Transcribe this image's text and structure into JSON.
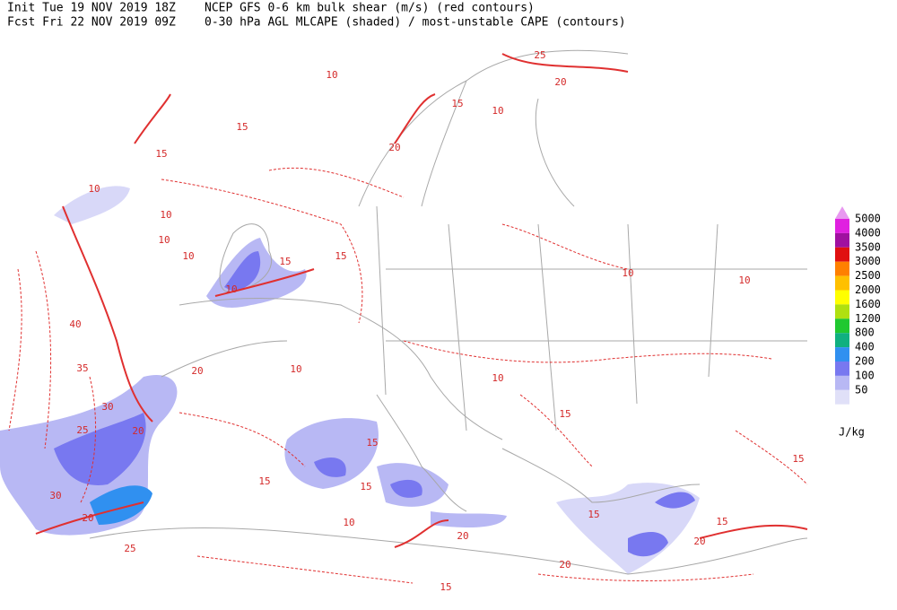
{
  "header": {
    "init": "Init  Tue 19 NOV 2019 18Z",
    "model": "NCEP GFS 0-6 km bulk shear (m/s) (red contours)",
    "fcst": "Fcst Fri 22 NOV 2019 09Z",
    "subtitle": "0-30 hPa AGL MLCAPE (shaded) / most-unstable CAPE (contours)"
  },
  "colorbar": {
    "levels": [
      5000,
      4000,
      3500,
      3000,
      2500,
      2000,
      1600,
      1200,
      800,
      400,
      200,
      100,
      50
    ],
    "colors": [
      "#e020e0",
      "#a010a0",
      "#e01010",
      "#ff8000",
      "#ffc000",
      "#ffff00",
      "#b0e010",
      "#20c830",
      "#10b080",
      "#3090f0",
      "#7878f0",
      "#b8b8f4",
      "#e0e0f8"
    ],
    "extend_color": "#e898f0",
    "unit": "J/kg"
  },
  "contour_labels": [
    "10",
    "15",
    "25",
    "20",
    "15",
    "10",
    "20",
    "10",
    "15",
    "10",
    "10",
    "15",
    "10",
    "10",
    "40",
    "35",
    "30",
    "25",
    "20",
    "30",
    "20",
    "25",
    "15",
    "20",
    "10",
    "15",
    "15",
    "20",
    "15",
    "10",
    "10",
    "15",
    "20",
    "15",
    "15",
    "10",
    "10",
    "20",
    "15",
    "15"
  ]
}
